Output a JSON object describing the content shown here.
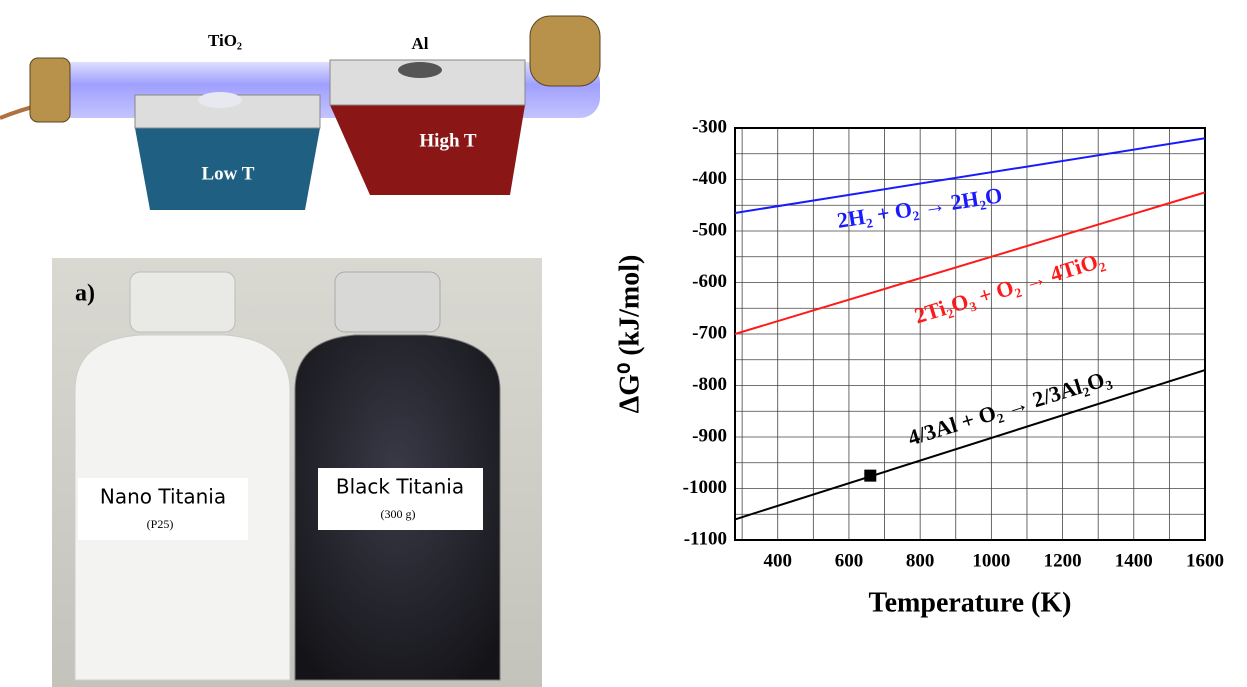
{
  "diagram": {
    "tio2_label": "TiO₂",
    "al_label": "Al",
    "low_label": "Low T",
    "high_label": "High T"
  },
  "photo": {
    "panel_label": "a)",
    "left_label": "Nano Titania",
    "left_sub": "(P25)",
    "right_label": "Black Titania",
    "right_sub": "(300 g)"
  },
  "chart_data": {
    "type": "line",
    "x_label": "Temperature (K)",
    "y_label": "ΔG⁰ (kJ/mol)",
    "xlim": [
      280,
      1600
    ],
    "ylim": [
      -1100,
      -300
    ],
    "xticks": [
      400,
      600,
      800,
      1000,
      1200,
      1400,
      1600
    ],
    "yticks": [
      -1100,
      -1000,
      -900,
      -800,
      -700,
      -600,
      -500,
      -400,
      -300
    ],
    "x_minor_ticks": [
      300,
      500,
      700,
      900,
      1100,
      1300,
      1500
    ],
    "y_minor_ticks": [
      -1050,
      -950,
      -850,
      -750,
      -650,
      -550,
      -450,
      -350
    ],
    "grid": true,
    "x": [
      280,
      1600
    ],
    "series": [
      {
        "name": "2H₂ + O₂ → 2H₂O",
        "color": "#1a1aff",
        "values": [
          -465,
          -320
        ]
      },
      {
        "name": "2Ti₂O₃ + O₂ → 4TiO₂",
        "color": "#ff1a1a",
        "values": [
          -700,
          -425
        ]
      },
      {
        "name": "4/3Al + O₂ → 2/3Al₂O₃",
        "color": "#000000",
        "values": [
          -1060,
          -770
        ]
      }
    ],
    "markers": {
      "x": [
        660
      ],
      "values": [
        -975
      ]
    }
  }
}
